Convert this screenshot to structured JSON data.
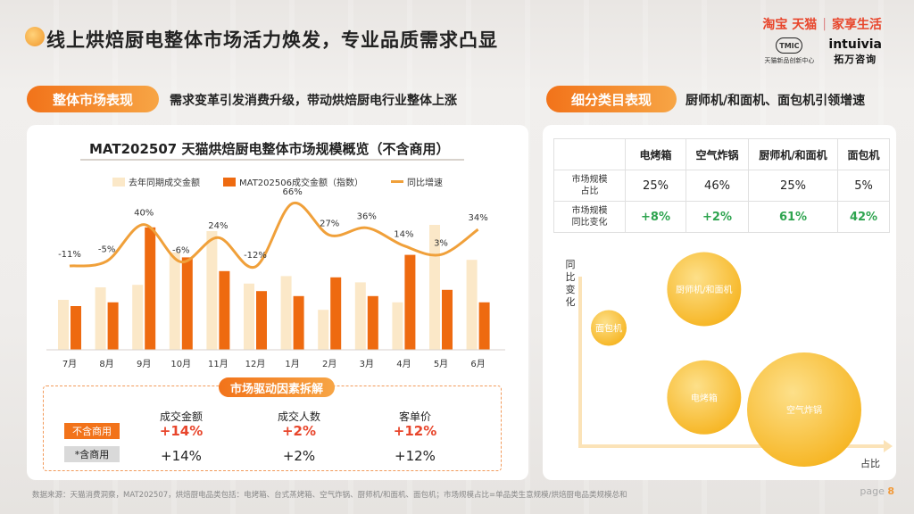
{
  "header": {
    "title": "线上烘焙厨电整体市场活力焕发，专业品质需求凸显",
    "logo_taobao": "淘宝 天猫",
    "logo_sep": "|",
    "logo_home": "家享生活",
    "tmic_badge": "TMIC",
    "tmic_sub": "天猫新品创新中心",
    "intuivia_en": "intuivia",
    "intuivia_cn": "拓万咨询"
  },
  "left_section": {
    "pill": "整体市场表现",
    "desc": "需求变革引发消费升级，带动烘焙厨电行业整体上涨"
  },
  "right_section": {
    "pill": "细分类目表现",
    "desc": "厨师机/和面机、面包机引领增速"
  },
  "legend": {
    "a": "去年同期成交金额",
    "b": "MAT202506成交金额（指数）",
    "c": "同比增速"
  },
  "chart_data": [
    {
      "type": "bar",
      "title": "MAT202507 天猫烘焙厨电整体市场规模概览（不含商用）",
      "categories": [
        "7月",
        "8月",
        "9月",
        "10月",
        "11月",
        "12月",
        "1月",
        "2月",
        "3月",
        "4月",
        "5月",
        "6月"
      ],
      "series": [
        {
          "name": "去年同期成交金额",
          "type": "bar",
          "values": [
            40,
            50,
            52,
            78,
            95,
            53,
            59,
            32,
            54,
            38,
            100,
            72
          ]
        },
        {
          "name": "MAT202506成交金额（指数）",
          "type": "bar",
          "values": [
            35,
            38,
            98,
            74,
            63,
            47,
            43,
            58,
            43,
            76,
            48,
            38
          ]
        },
        {
          "name": "同比增速",
          "type": "line",
          "values": [
            -11,
            -5,
            40,
            -6,
            24,
            -12,
            66,
            27,
            36,
            14,
            3,
            34
          ],
          "labels": [
            "-11%",
            "-5%",
            "40%",
            "-6%",
            "24%",
            "-12%",
            "66%",
            "27%",
            "36%",
            "14%",
            "3%",
            "34%"
          ]
        }
      ]
    },
    {
      "type": "scatter",
      "xlabel": "占比",
      "ylabel": "同比变化",
      "points": [
        {
          "label": "面包机",
          "x": 5,
          "y": 42
        },
        {
          "label": "厨师机/和面机",
          "x": 25,
          "y": 61
        },
        {
          "label": "电烤箱",
          "x": 25,
          "y": 8
        },
        {
          "label": "空气炸锅",
          "x": 46,
          "y": 2
        }
      ]
    }
  ],
  "drivers": {
    "title": "市场驱动因素拆解",
    "headers": [
      "成交金额",
      "成交人数",
      "客单价"
    ],
    "row1_label": "不含商用",
    "row1": [
      "+14%",
      "+2%",
      "+12%"
    ],
    "row2_label": "*含商用",
    "row2": [
      "+14%",
      "+2%",
      "+12%"
    ]
  },
  "segment_table": {
    "columns": [
      "电烤箱",
      "空气炸锅",
      "厨师机/和面机",
      "面包机"
    ],
    "row1_label_a": "市场规模",
    "row1_label_b": "占比",
    "row1": [
      "25%",
      "46%",
      "25%",
      "5%"
    ],
    "row2_label_a": "市场规模",
    "row2_label_b": "同比变化",
    "row2": [
      "+8%",
      "+2%",
      "61%",
      "42%"
    ]
  },
  "bubble_axis": {
    "y1": "同",
    "y2": "比",
    "y3": "变",
    "y4": "化",
    "x": "占比"
  },
  "footer": {
    "source": "数据来源：天猫消费洞察，MAT202507，烘焙厨电品类包括：电烤箱、台式蒸烤箱、空气炸锅、厨师机/和面机、面包机；市场规模占比=单品类生意规模/烘焙厨电品类规模总和",
    "page_label": "page",
    "page_num": "8"
  },
  "colors": {
    "accent": "#f2731a",
    "bar_light": "#fbe8c8",
    "bar_dark": "#ee6a10",
    "line": "#f0a03a",
    "green": "#2ea44f",
    "red": "#e8462c"
  }
}
